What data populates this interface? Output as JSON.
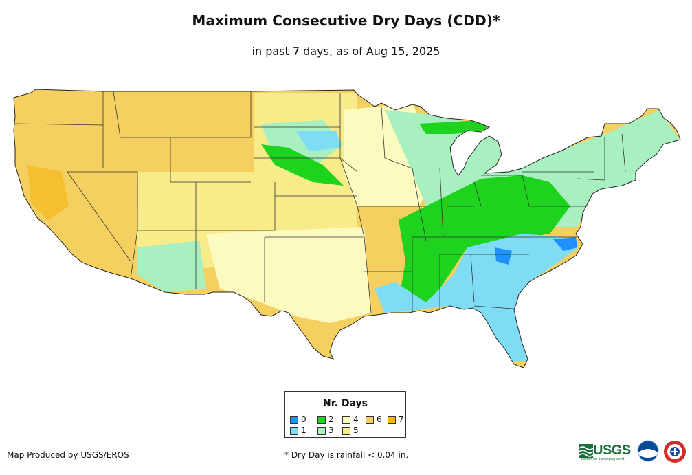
{
  "header": {
    "title": "Maximum Consecutive Dry Days (CDD)*",
    "subtitle": "in past 7 days, as of Aug 15, 2025"
  },
  "legend": {
    "title": "Nr. Days",
    "items": [
      {
        "label": "0",
        "color": "#1e90ff"
      },
      {
        "label": "1",
        "color": "#7fdcf5"
      },
      {
        "label": "2",
        "color": "#1ed31e"
      },
      {
        "label": "3",
        "color": "#a8f0c0"
      },
      {
        "label": "4",
        "color": "#fbfbc0"
      },
      {
        "label": "5",
        "color": "#f8ec8a"
      },
      {
        "label": "6",
        "color": "#f5d060"
      },
      {
        "label": "7",
        "color": "#f5b800"
      }
    ]
  },
  "footer": {
    "credit": "Map Produced by USGS/EROS",
    "footnote": "* Dry Day is rainfall < 0.04 in."
  },
  "logos": {
    "usgs": "USGS",
    "usgs_tagline": "science for a changing world",
    "noaa": "noaa-logo",
    "nws": "nws-logo"
  },
  "map": {
    "regions": [
      {
        "name": "west-coast-and-great-basin",
        "days": 6
      },
      {
        "name": "northern-rockies-and-plains",
        "days": 6
      },
      {
        "name": "central-rockies",
        "days": 5
      },
      {
        "name": "southern-plains",
        "days": 4
      },
      {
        "name": "corn-belt",
        "days": 3
      },
      {
        "name": "ohio-tennessee-valley",
        "days": 2
      },
      {
        "name": "southeast",
        "days": 1
      },
      {
        "name": "northeast",
        "days": 3
      },
      {
        "name": "mid-atlantic-coast",
        "days": 0
      }
    ]
  }
}
